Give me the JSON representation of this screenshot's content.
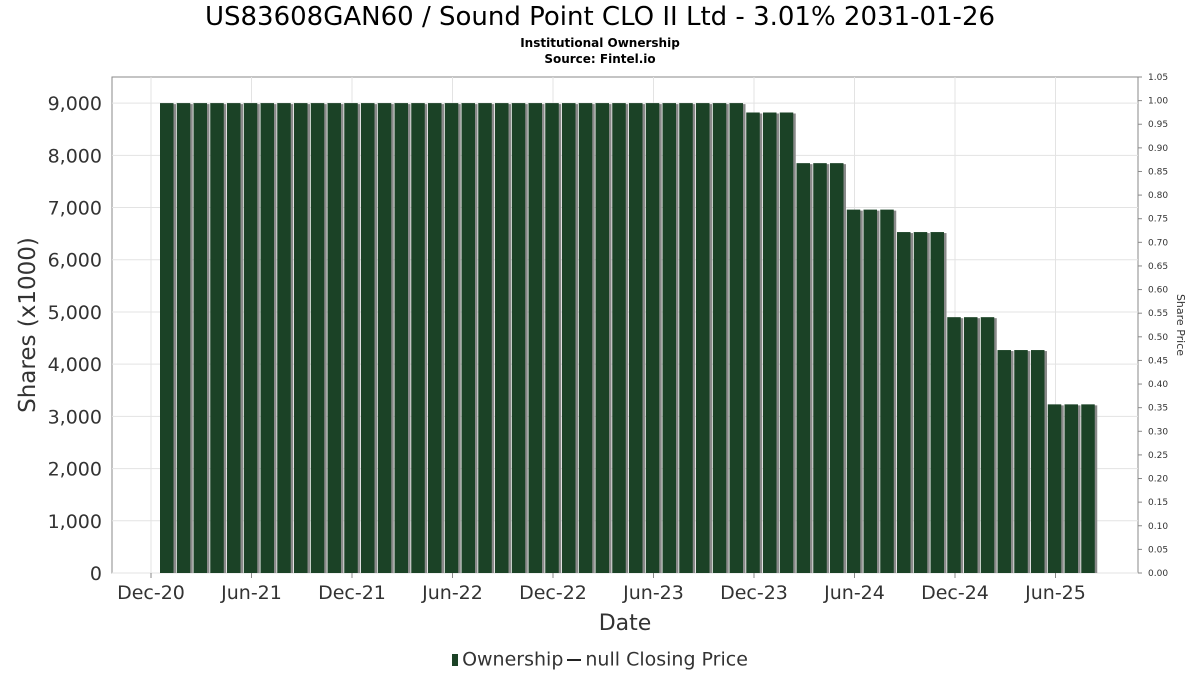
{
  "header": {
    "title": "US83608GAN60 / Sound Point CLO II Ltd - 3.01% 2031-01-26",
    "subtitle": "Institutional Ownership",
    "source": "Source: Fintel.io"
  },
  "legend": {
    "bar_label": "Ownership",
    "line_label": "null Closing Price"
  },
  "colors": {
    "bar": "#1b4226",
    "bar_shadow": "#8a8a8a",
    "grid": "#e3e3e3",
    "axis": "#888888"
  },
  "chart_data": {
    "type": "bar",
    "xlabel": "Date",
    "ylabel": "Shares (x1000)",
    "y2label": "Share Price",
    "ylim": [
      0,
      9500
    ],
    "y2lim": [
      0,
      1.05
    ],
    "yticks": [
      "0",
      "1,000",
      "2,000",
      "3,000",
      "4,000",
      "5,000",
      "6,000",
      "7,000",
      "8,000",
      "9,000"
    ],
    "y2ticks": [
      "0.00",
      "0.05",
      "0.10",
      "0.15",
      "0.20",
      "0.25",
      "0.30",
      "0.35",
      "0.40",
      "0.45",
      "0.50",
      "0.55",
      "0.60",
      "0.65",
      "0.70",
      "0.75",
      "0.80",
      "0.85",
      "0.90",
      "0.95",
      "1.00",
      "1.05"
    ],
    "xticks": [
      "Dec-20",
      "Jun-21",
      "Dec-21",
      "Jun-22",
      "Dec-22",
      "Jun-23",
      "Dec-23",
      "Jun-24",
      "Dec-24",
      "Jun-25"
    ],
    "grid": true,
    "legend_position": "bottom",
    "series": [
      {
        "name": "Ownership",
        "values": [
          9000,
          9000,
          9000,
          9000,
          9000,
          9000,
          9000,
          9000,
          9000,
          9000,
          9000,
          9000,
          9000,
          9000,
          9000,
          9000,
          9000,
          9000,
          9000,
          9000,
          9000,
          9000,
          9000,
          9000,
          9000,
          9000,
          9000,
          9000,
          9000,
          9000,
          9000,
          9000,
          9000,
          9000,
          9000,
          8820,
          8820,
          8820,
          7850,
          7850,
          7850,
          6960,
          6960,
          6960,
          6530,
          6530,
          6530,
          4900,
          4900,
          4900,
          4270,
          4270,
          4270,
          3230,
          3230,
          3230
        ]
      }
    ]
  }
}
